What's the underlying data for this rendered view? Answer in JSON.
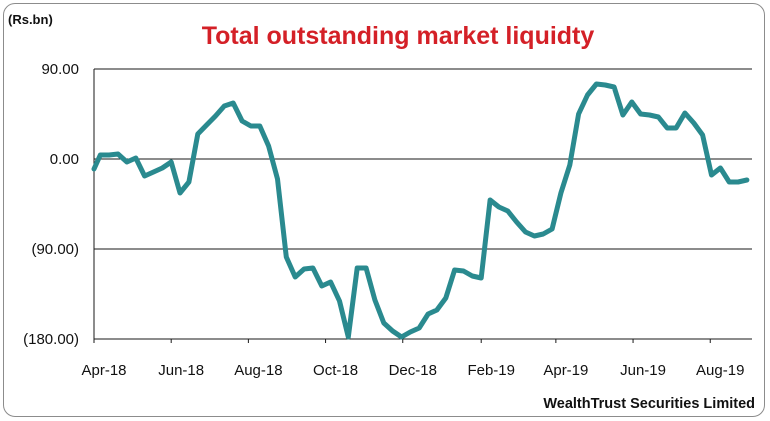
{
  "chart_data": {
    "type": "line",
    "title": "Total outstanding market liquidty",
    "unit_label": "(Rs.bn)",
    "source": "WealthTrust Securities Limited",
    "ylim": [
      -180,
      90
    ],
    "y_ticks": [
      {
        "value": 90,
        "label": "90.00"
      },
      {
        "value": 0,
        "label": "0.00"
      },
      {
        "value": -90,
        "label": "(90.00)"
      },
      {
        "value": -180,
        "label": "(180.00)"
      }
    ],
    "x_ticks": [
      "Apr-18",
      "Jun-18",
      "Aug-18",
      "Oct-18",
      "Dec-18",
      "Feb-19",
      "Apr-19",
      "Jun-19",
      "Aug-19"
    ],
    "grid": "horizontal",
    "line_color": "#2a8a8f",
    "series": [
      {
        "x": [
          "2018-04-01",
          "2018-04-06",
          "2018-04-13",
          "2018-04-20",
          "2018-04-27",
          "2018-05-04",
          "2018-05-11",
          "2018-05-18",
          "2018-05-25",
          "2018-06-01",
          "2018-06-08",
          "2018-06-15",
          "2018-06-22",
          "2018-06-29",
          "2018-07-06",
          "2018-07-13",
          "2018-07-20",
          "2018-07-27",
          "2018-08-03",
          "2018-08-10",
          "2018-08-17",
          "2018-08-24",
          "2018-08-31",
          "2018-09-07",
          "2018-09-14",
          "2018-09-21",
          "2018-09-28",
          "2018-10-05",
          "2018-10-12",
          "2018-10-19",
          "2018-10-26",
          "2018-11-02",
          "2018-11-09",
          "2018-11-16",
          "2018-11-23",
          "2018-11-30",
          "2018-12-07",
          "2018-12-14",
          "2018-12-21",
          "2018-12-28",
          "2019-01-04",
          "2019-01-11",
          "2019-01-18",
          "2019-01-25",
          "2019-02-01",
          "2019-02-08",
          "2019-02-15",
          "2019-02-22",
          "2019-03-01",
          "2019-03-08",
          "2019-03-15",
          "2019-03-22",
          "2019-03-29",
          "2019-04-05",
          "2019-04-12",
          "2019-04-19",
          "2019-04-26",
          "2019-05-03",
          "2019-05-10",
          "2019-05-17",
          "2019-05-24",
          "2019-05-31",
          "2019-06-07",
          "2019-06-14",
          "2019-06-21",
          "2019-06-28",
          "2019-07-05",
          "2019-07-12",
          "2019-07-19",
          "2019-07-26",
          "2019-08-02",
          "2019-08-09",
          "2019-08-16",
          "2019-08-23",
          "2019-08-30"
        ],
        "values": [
          -10,
          4,
          4,
          5,
          -3,
          1,
          -17,
          -13,
          -9,
          -3,
          -34,
          -23,
          25,
          34,
          43,
          53,
          56,
          38,
          33,
          33,
          13,
          -20,
          -98,
          -118,
          -110,
          -109,
          -127,
          -123,
          -142,
          -178,
          -109,
          -109,
          -141,
          -164,
          -172,
          -178,
          -173,
          -169,
          -155,
          -151,
          -139,
          -111,
          -112,
          -117,
          -119,
          -41,
          -48,
          -52,
          -63,
          -73,
          -77,
          -75,
          -70,
          -34,
          -6,
          45,
          64,
          75,
          74,
          72,
          44,
          57,
          45,
          44,
          42,
          31,
          31,
          46,
          36,
          24,
          -16,
          -9,
          -23,
          -23,
          -21
        ]
      }
    ]
  }
}
